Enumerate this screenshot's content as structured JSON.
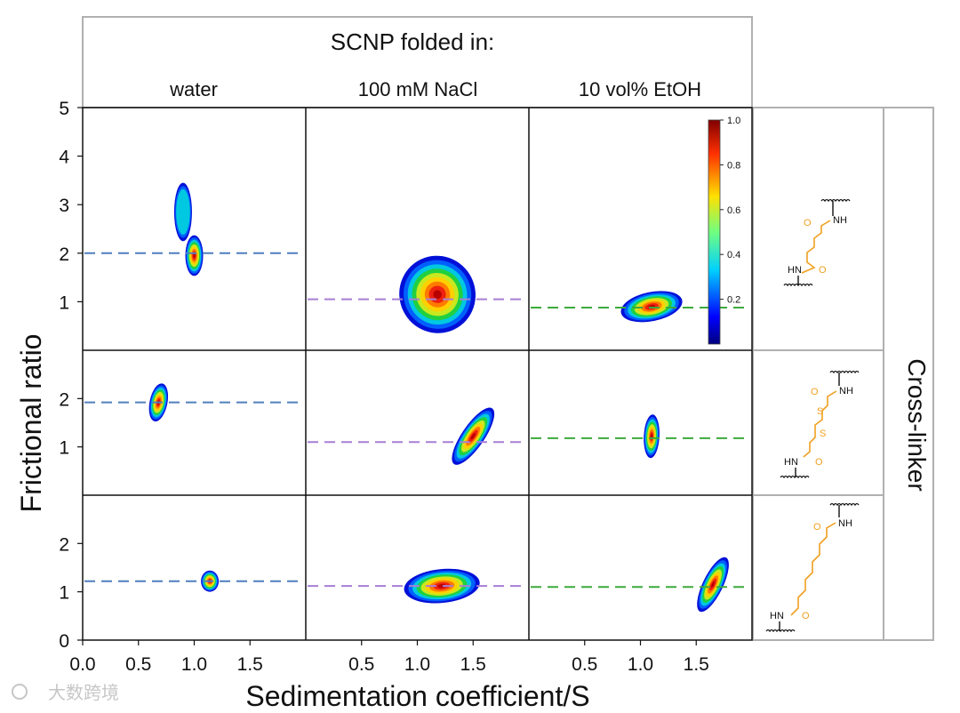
{
  "chart_data": {
    "type": "heatmap",
    "title": "SCNP folded in:",
    "xlabel": "Sedimentation coefficient/S",
    "ylabel": "Frictional ratio",
    "side_label": "Cross-linker",
    "columns": [
      "water",
      "100 mM NaCl",
      "10 vol% EtOH"
    ],
    "x_ticks": [
      "0.0",
      "0.5",
      "1.0",
      "1.5"
    ],
    "x_ticks_inner": [
      "0.5",
      "1.0",
      "1.5"
    ],
    "xlim": [
      0,
      2.0
    ],
    "rows": [
      {
        "ylim": [
          0,
          5
        ],
        "y_ticks": [
          "1",
          "2",
          "3",
          "4",
          "5"
        ]
      },
      {
        "ylim": [
          0,
          3
        ],
        "y_ticks": [
          "1",
          "2"
        ]
      },
      {
        "ylim": [
          0,
          3
        ],
        "y_ticks": [
          "0",
          "1",
          "2"
        ]
      }
    ],
    "colorbar": {
      "min": 0,
      "max": 1.0,
      "ticks": [
        "0.2",
        "0.4",
        "0.6",
        "0.8",
        "1.0"
      ]
    },
    "panels": [
      {
        "row": 0,
        "col": 0,
        "line_y": 2.0,
        "line_color": "#4f7fbf",
        "blobs": [
          {
            "cx": 0.9,
            "cy": 2.85,
            "sx": 0.08,
            "sy": 0.6,
            "rot": 0,
            "peak": 0.38
          },
          {
            "cx": 1.0,
            "cy": 1.95,
            "sx": 0.08,
            "sy": 0.42,
            "rot": 0,
            "peak": 1.0
          }
        ]
      },
      {
        "row": 0,
        "col": 1,
        "line_y": 1.05,
        "line_color": "#a77fd4",
        "blobs": [
          {
            "cx": 1.18,
            "cy": 1.15,
            "sx": 0.34,
            "sy": 0.8,
            "rot": -0.45,
            "peak": 1.0
          }
        ]
      },
      {
        "row": 0,
        "col": 2,
        "line_y": 0.88,
        "line_color": "#3caa3c",
        "blobs": [
          {
            "cx": 1.1,
            "cy": 0.9,
            "sx": 0.28,
            "sy": 0.3,
            "rot": -0.2,
            "peak": 1.0
          }
        ]
      },
      {
        "row": 1,
        "col": 0,
        "line_y": 1.92,
        "line_color": "#4f7fbf",
        "blobs": [
          {
            "cx": 0.68,
            "cy": 1.92,
            "sx": 0.08,
            "sy": 0.4,
            "rot": 0.2,
            "peak": 1.0
          }
        ]
      },
      {
        "row": 1,
        "col": 1,
        "line_y": 1.1,
        "line_color": "#a77fd4",
        "blobs": [
          {
            "cx": 1.5,
            "cy": 1.22,
            "sx": 0.1,
            "sy": 0.7,
            "rot": 0.6,
            "peak": 1.0
          }
        ]
      },
      {
        "row": 1,
        "col": 2,
        "line_y": 1.18,
        "line_color": "#3caa3c",
        "blobs": [
          {
            "cx": 1.1,
            "cy": 1.22,
            "sx": 0.07,
            "sy": 0.45,
            "rot": 0.05,
            "peak": 1.0
          }
        ]
      },
      {
        "row": 2,
        "col": 0,
        "line_y": 1.22,
        "line_color": "#4f7fbf",
        "blobs": [
          {
            "cx": 1.14,
            "cy": 1.22,
            "sx": 0.08,
            "sy": 0.22,
            "rot": 0,
            "peak": 1.0
          }
        ]
      },
      {
        "row": 2,
        "col": 1,
        "line_y": 1.12,
        "line_color": "#a77fd4",
        "blobs": [
          {
            "cx": 1.22,
            "cy": 1.12,
            "sx": 0.34,
            "sy": 0.35,
            "rot": -0.1,
            "peak": 1.0
          }
        ]
      },
      {
        "row": 2,
        "col": 2,
        "line_y": 1.1,
        "line_color": "#3caa3c",
        "blobs": [
          {
            "cx": 1.65,
            "cy": 1.15,
            "sx": 0.09,
            "sy": 0.62,
            "rot": 0.45,
            "peak": 1.0
          }
        ]
      }
    ],
    "linkers": [
      {
        "labels": [
          "NH",
          "HN",
          "O",
          "O"
        ]
      },
      {
        "labels": [
          "NH",
          "HN",
          "O",
          "O",
          "S",
          "S"
        ]
      },
      {
        "labels": [
          "NH",
          "HN",
          "O",
          "O"
        ]
      }
    ]
  },
  "watermark": "大数跨境",
  "colors": {
    "frame": "#b0b0b0",
    "linker": "#f0a020",
    "cmap": [
      "#0010d8",
      "#0060ff",
      "#00c8e0",
      "#20d040",
      "#c8e820",
      "#ffd000",
      "#ff7a00",
      "#ee2010",
      "#b80000"
    ]
  }
}
